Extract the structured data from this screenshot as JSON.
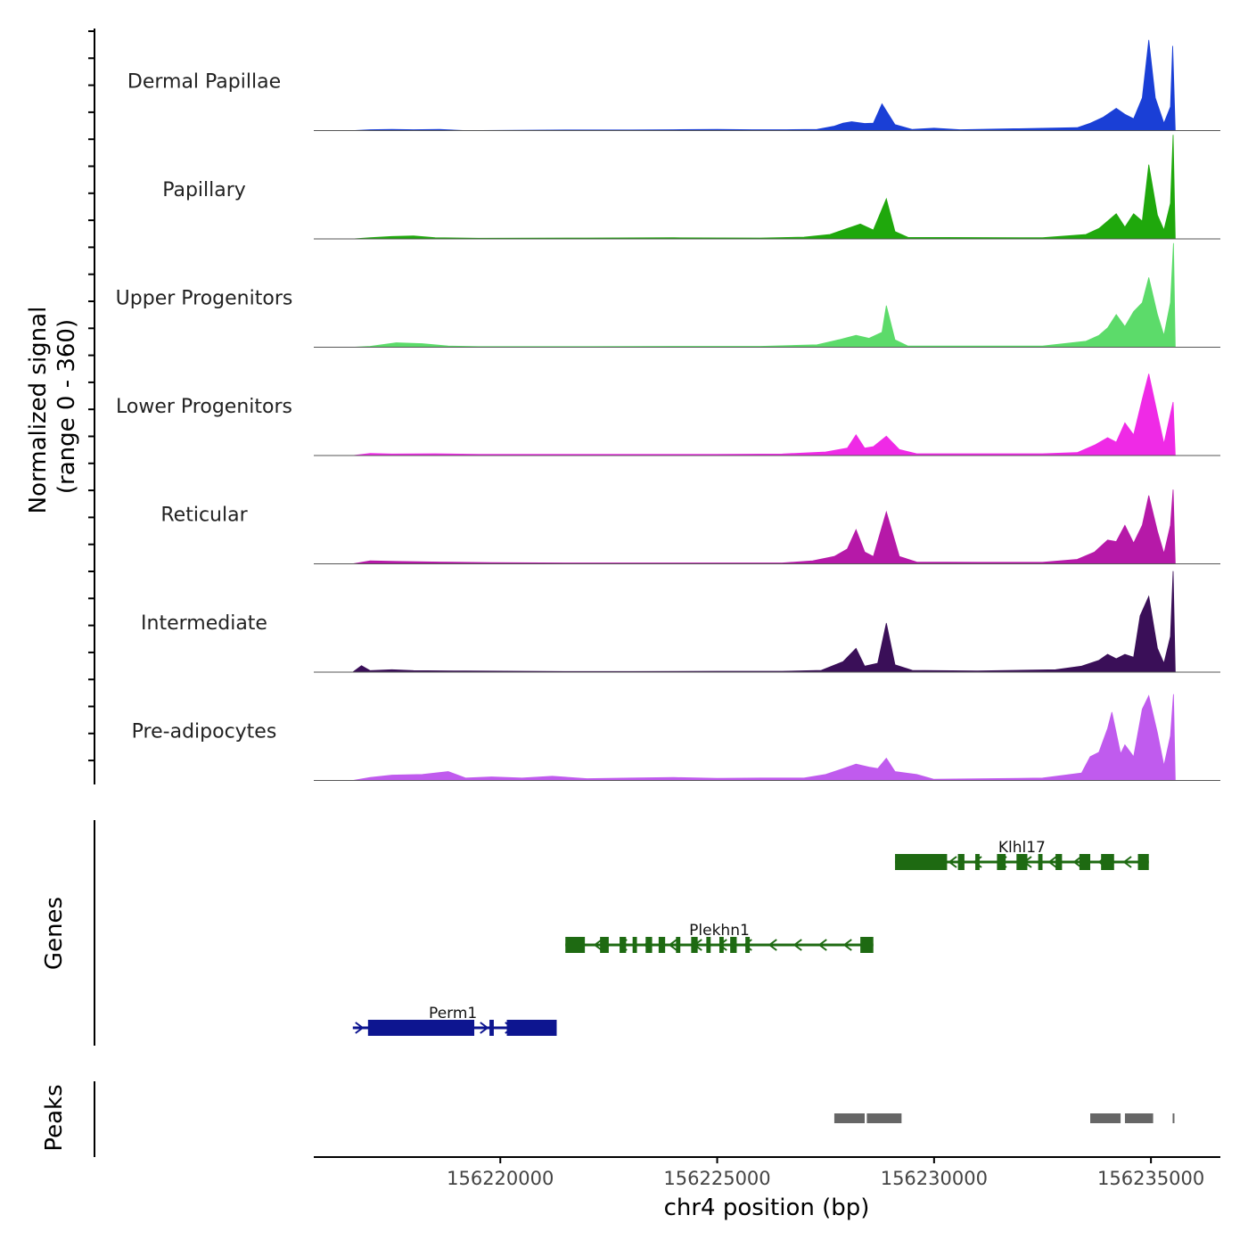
{
  "chart_data": {
    "type": "area",
    "title": "",
    "ylabel_line1": "Normalized signal",
    "ylabel_line2": "(range 0 - 360)",
    "xlabel": "chr4 position (bp)",
    "xlim": [
      156215700,
      156236600
    ],
    "ylim": [
      0,
      360
    ],
    "x_ticks": [
      156220000,
      156225000,
      156230000,
      156235000
    ],
    "x_tick_labels": [
      "156220000",
      "156225000",
      "156230000",
      "156235000"
    ],
    "track_labels": [
      "Genes",
      "Peaks"
    ],
    "tracks": [
      {
        "name": "Dermal Papillae",
        "color": "#1a3fd6",
        "points": [
          [
            156216600,
            0
          ],
          [
            156217000,
            3
          ],
          [
            156217500,
            4
          ],
          [
            156218000,
            3
          ],
          [
            156218600,
            4
          ],
          [
            156219200,
            0
          ],
          [
            156221500,
            2
          ],
          [
            156223000,
            2
          ],
          [
            156224000,
            3
          ],
          [
            156225000,
            4
          ],
          [
            156225800,
            3
          ],
          [
            156226600,
            3
          ],
          [
            156227300,
            4
          ],
          [
            156227700,
            15
          ],
          [
            156227900,
            25
          ],
          [
            156228100,
            30
          ],
          [
            156228400,
            24
          ],
          [
            156228600,
            25
          ],
          [
            156228800,
            90
          ],
          [
            156229100,
            20
          ],
          [
            156229500,
            4
          ],
          [
            156230000,
            8
          ],
          [
            156230600,
            3
          ],
          [
            156233300,
            10
          ],
          [
            156233600,
            25
          ],
          [
            156233900,
            45
          ],
          [
            156234200,
            75
          ],
          [
            156234400,
            55
          ],
          [
            156234600,
            40
          ],
          [
            156234800,
            110
          ],
          [
            156234950,
            305
          ],
          [
            156235100,
            110
          ],
          [
            156235300,
            25
          ],
          [
            156235450,
            80
          ],
          [
            156235500,
            285
          ],
          [
            156235560,
            0
          ]
        ]
      },
      {
        "name": "Papillary",
        "color": "#1fa80c",
        "points": [
          [
            156216600,
            0
          ],
          [
            156217000,
            4
          ],
          [
            156217500,
            8
          ],
          [
            156218000,
            10
          ],
          [
            156218500,
            4
          ],
          [
            156219500,
            2
          ],
          [
            156222000,
            3
          ],
          [
            156224000,
            4
          ],
          [
            156226000,
            3
          ],
          [
            156227000,
            6
          ],
          [
            156227600,
            15
          ],
          [
            156228000,
            35
          ],
          [
            156228300,
            50
          ],
          [
            156228600,
            30
          ],
          [
            156228900,
            135
          ],
          [
            156229100,
            25
          ],
          [
            156229400,
            5
          ],
          [
            156232500,
            4
          ],
          [
            156233500,
            15
          ],
          [
            156233800,
            35
          ],
          [
            156234000,
            60
          ],
          [
            156234200,
            85
          ],
          [
            156234400,
            40
          ],
          [
            156234600,
            85
          ],
          [
            156234800,
            60
          ],
          [
            156234950,
            250
          ],
          [
            156235150,
            80
          ],
          [
            156235300,
            30
          ],
          [
            156235450,
            120
          ],
          [
            156235510,
            350
          ],
          [
            156235560,
            0
          ]
        ]
      },
      {
        "name": "Upper Progenitors",
        "color": "#5cdb6a",
        "points": [
          [
            156216600,
            0
          ],
          [
            156217000,
            3
          ],
          [
            156217600,
            15
          ],
          [
            156218200,
            12
          ],
          [
            156218800,
            4
          ],
          [
            156219500,
            2
          ],
          [
            156222000,
            2
          ],
          [
            156224000,
            3
          ],
          [
            156226000,
            3
          ],
          [
            156227300,
            8
          ],
          [
            156227800,
            25
          ],
          [
            156228200,
            40
          ],
          [
            156228500,
            30
          ],
          [
            156228800,
            50
          ],
          [
            156228900,
            140
          ],
          [
            156229100,
            25
          ],
          [
            156229400,
            4
          ],
          [
            156232500,
            4
          ],
          [
            156233500,
            20
          ],
          [
            156233800,
            40
          ],
          [
            156234000,
            65
          ],
          [
            156234200,
            110
          ],
          [
            156234400,
            70
          ],
          [
            156234600,
            120
          ],
          [
            156234800,
            150
          ],
          [
            156234950,
            235
          ],
          [
            156235150,
            110
          ],
          [
            156235300,
            40
          ],
          [
            156235450,
            150
          ],
          [
            156235520,
            350
          ],
          [
            156235560,
            0
          ]
        ]
      },
      {
        "name": "Lower Progenitors",
        "color": "#ef2ae6",
        "points": [
          [
            156216600,
            0
          ],
          [
            156217000,
            7
          ],
          [
            156217500,
            5
          ],
          [
            156218500,
            6
          ],
          [
            156219500,
            4
          ],
          [
            156221000,
            4
          ],
          [
            156223000,
            4
          ],
          [
            156225000,
            4
          ],
          [
            156226500,
            5
          ],
          [
            156227500,
            12
          ],
          [
            156228000,
            25
          ],
          [
            156228200,
            70
          ],
          [
            156228400,
            25
          ],
          [
            156228600,
            30
          ],
          [
            156228900,
            65
          ],
          [
            156229200,
            20
          ],
          [
            156229600,
            6
          ],
          [
            156231000,
            6
          ],
          [
            156232500,
            6
          ],
          [
            156233300,
            10
          ],
          [
            156233700,
            35
          ],
          [
            156234000,
            60
          ],
          [
            156234200,
            45
          ],
          [
            156234400,
            110
          ],
          [
            156234600,
            70
          ],
          [
            156234800,
            190
          ],
          [
            156234950,
            275
          ],
          [
            156235150,
            140
          ],
          [
            156235300,
            40
          ],
          [
            156235450,
            140
          ],
          [
            156235510,
            180
          ],
          [
            156235560,
            0
          ]
        ]
      },
      {
        "name": "Reticular",
        "color": "#b619a8",
        "points": [
          [
            156216600,
            0
          ],
          [
            156217000,
            10
          ],
          [
            156217600,
            8
          ],
          [
            156218600,
            6
          ],
          [
            156219800,
            4
          ],
          [
            156221500,
            3
          ],
          [
            156223000,
            3
          ],
          [
            156225000,
            3
          ],
          [
            156226500,
            3
          ],
          [
            156227200,
            10
          ],
          [
            156227700,
            25
          ],
          [
            156228000,
            50
          ],
          [
            156228200,
            115
          ],
          [
            156228400,
            40
          ],
          [
            156228600,
            25
          ],
          [
            156228900,
            175
          ],
          [
            156229200,
            25
          ],
          [
            156229600,
            6
          ],
          [
            156231000,
            5
          ],
          [
            156232500,
            5
          ],
          [
            156233300,
            15
          ],
          [
            156233700,
            40
          ],
          [
            156234000,
            80
          ],
          [
            156234200,
            75
          ],
          [
            156234400,
            130
          ],
          [
            156234600,
            70
          ],
          [
            156234800,
            130
          ],
          [
            156234950,
            230
          ],
          [
            156235150,
            110
          ],
          [
            156235300,
            35
          ],
          [
            156235450,
            130
          ],
          [
            156235510,
            250
          ],
          [
            156235560,
            0
          ]
        ]
      },
      {
        "name": "Intermediate",
        "color": "#3a0f58",
        "points": [
          [
            156216600,
            0
          ],
          [
            156216800,
            22
          ],
          [
            156217000,
            5
          ],
          [
            156217500,
            8
          ],
          [
            156218000,
            5
          ],
          [
            156219200,
            4
          ],
          [
            156221500,
            2
          ],
          [
            156223000,
            2
          ],
          [
            156225000,
            3
          ],
          [
            156226500,
            3
          ],
          [
            156227400,
            6
          ],
          [
            156227900,
            35
          ],
          [
            156228200,
            80
          ],
          [
            156228400,
            20
          ],
          [
            156228700,
            30
          ],
          [
            156228900,
            165
          ],
          [
            156229100,
            25
          ],
          [
            156229500,
            6
          ],
          [
            156231000,
            4
          ],
          [
            156232800,
            8
          ],
          [
            156233400,
            20
          ],
          [
            156233800,
            40
          ],
          [
            156234000,
            60
          ],
          [
            156234200,
            45
          ],
          [
            156234400,
            60
          ],
          [
            156234600,
            50
          ],
          [
            156234750,
            190
          ],
          [
            156234950,
            255
          ],
          [
            156235150,
            80
          ],
          [
            156235300,
            30
          ],
          [
            156235450,
            120
          ],
          [
            156235510,
            340
          ],
          [
            156235560,
            0
          ]
        ]
      },
      {
        "name": "Pre-adipocytes",
        "color": "#c05bee",
        "points": [
          [
            156216600,
            0
          ],
          [
            156217000,
            10
          ],
          [
            156217500,
            18
          ],
          [
            156218200,
            20
          ],
          [
            156218800,
            30
          ],
          [
            156219200,
            8
          ],
          [
            156219800,
            12
          ],
          [
            156220500,
            8
          ],
          [
            156221200,
            14
          ],
          [
            156222000,
            6
          ],
          [
            156223000,
            8
          ],
          [
            156224000,
            10
          ],
          [
            156225000,
            7
          ],
          [
            156226000,
            8
          ],
          [
            156227000,
            8
          ],
          [
            156227500,
            20
          ],
          [
            156227900,
            40
          ],
          [
            156228200,
            55
          ],
          [
            156228500,
            45
          ],
          [
            156228700,
            40
          ],
          [
            156228900,
            75
          ],
          [
            156229100,
            30
          ],
          [
            156229600,
            20
          ],
          [
            156230000,
            4
          ],
          [
            156232500,
            8
          ],
          [
            156233400,
            25
          ],
          [
            156233600,
            80
          ],
          [
            156233800,
            95
          ],
          [
            156234000,
            175
          ],
          [
            156234100,
            230
          ],
          [
            156234300,
            90
          ],
          [
            156234400,
            120
          ],
          [
            156234600,
            80
          ],
          [
            156234800,
            240
          ],
          [
            156234950,
            285
          ],
          [
            156235150,
            160
          ],
          [
            156235300,
            50
          ],
          [
            156235450,
            150
          ],
          [
            156235520,
            290
          ],
          [
            156235560,
            0
          ]
        ]
      }
    ],
    "genes": [
      {
        "name": "Perm1",
        "color": "#0d1590",
        "strand": "+",
        "start": 156216600,
        "end": 156221300,
        "exons": [
          [
            156216950,
            156219400
          ],
          [
            156219750,
            156219850
          ],
          [
            156220150,
            156221300
          ]
        ]
      },
      {
        "name": "Plekhn1",
        "color": "#1e6a12",
        "strand": "-",
        "start": 156221500,
        "end": 156228600,
        "exons": [
          [
            156221500,
            156221950
          ],
          [
            156222300,
            156222500
          ],
          [
            156222750,
            156222900
          ],
          [
            156223050,
            156223150
          ],
          [
            156223350,
            156223500
          ],
          [
            156223650,
            156223800
          ],
          [
            156224050,
            156224150
          ],
          [
            156224400,
            156224550
          ],
          [
            156224750,
            156224850
          ],
          [
            156225050,
            156225150
          ],
          [
            156225300,
            156225450
          ],
          [
            156225650,
            156225750
          ],
          [
            156228300,
            156228600
          ]
        ]
      },
      {
        "name": "Klhl17",
        "color": "#1e6a12",
        "strand": "-",
        "start": 156229100,
        "end": 156234950,
        "exons": [
          [
            156229100,
            156230300
          ],
          [
            156230550,
            156230700
          ],
          [
            156230950,
            156231050
          ],
          [
            156231450,
            156231650
          ],
          [
            156231900,
            156232150
          ],
          [
            156232400,
            156232500
          ],
          [
            156232800,
            156232950
          ],
          [
            156233350,
            156233600
          ],
          [
            156233850,
            156234150
          ],
          [
            156234700,
            156234950
          ]
        ]
      }
    ],
    "peaks": [
      [
        156227700,
        156228400
      ],
      [
        156228450,
        156229250
      ],
      [
        156233600,
        156234300
      ],
      [
        156234400,
        156235050
      ],
      [
        156235500,
        156235530
      ]
    ]
  }
}
